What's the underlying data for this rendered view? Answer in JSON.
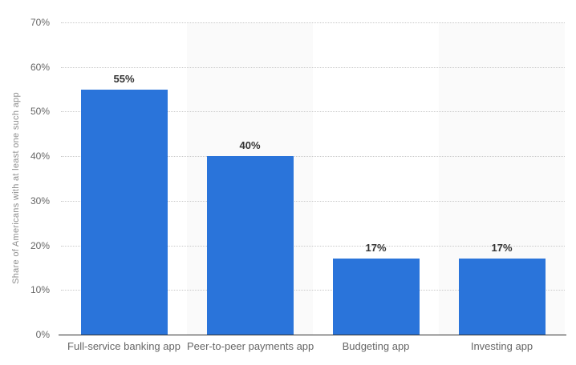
{
  "chart_data": {
    "type": "bar",
    "title": "",
    "categories": [
      "Full-service banking app",
      "Peer-to-peer payments app",
      "Budgeting app",
      "Investing app"
    ],
    "values": [
      55,
      40,
      17,
      17
    ],
    "value_labels": [
      "55%",
      "40%",
      "17%",
      "17%"
    ],
    "xlabel": "",
    "ylabel": "Share of Americans with at least one such app",
    "ylim": [
      0,
      70
    ],
    "ytick_step": 10,
    "ytick_labels": [
      "0%",
      "10%",
      "20%",
      "30%",
      "40%",
      "50%",
      "60%",
      "70%"
    ],
    "grid": "horizontal-dotted",
    "legend": "none",
    "alternating_column_bands": true
  },
  "colors": {
    "bar": "#2a74da",
    "column_band": "#fafafa",
    "gridline": "#c9c9c9",
    "axis_line": "#2f2f2f",
    "tick_text": "#666666",
    "value_text": "#333333",
    "axis_title_text": "#8f8f8f",
    "background": "#ffffff"
  }
}
